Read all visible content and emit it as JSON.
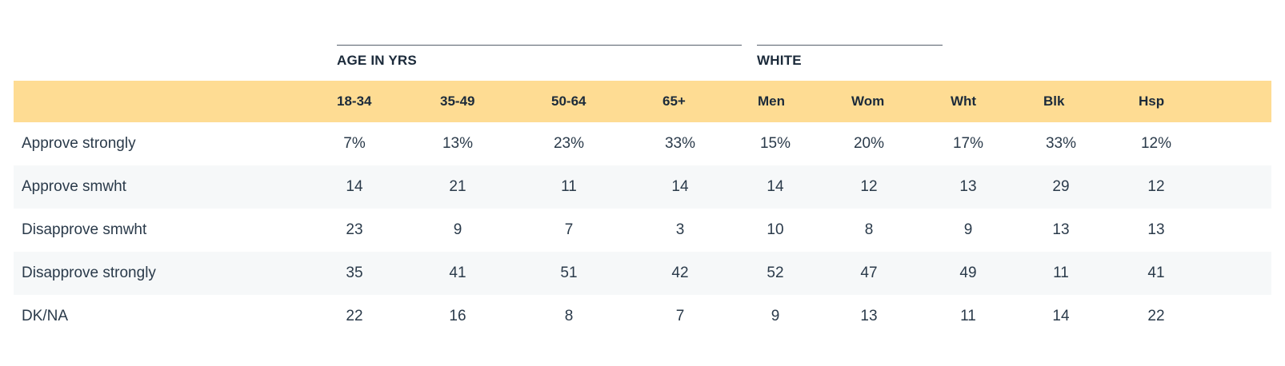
{
  "chart_data": {
    "type": "table",
    "column_groups": [
      {
        "label": "AGE IN YRS"
      },
      {
        "label": "WHITE"
      }
    ],
    "columns": [
      "18-34",
      "35-49",
      "50-64",
      "65+",
      "Men",
      "Wom",
      "Wht",
      "Blk",
      "Hsp"
    ],
    "rows": [
      {
        "label": "Approve strongly",
        "values": [
          "7%",
          "13%",
          "23%",
          "33%",
          "15%",
          "20%",
          "17%",
          "33%",
          "12%"
        ]
      },
      {
        "label": "Approve smwht",
        "values": [
          "14",
          "21",
          "11",
          "14",
          "14",
          "12",
          "13",
          "29",
          "12"
        ]
      },
      {
        "label": "Disapprove smwht",
        "values": [
          "23",
          "9",
          "7",
          "3",
          "10",
          "8",
          "9",
          "13",
          "13"
        ]
      },
      {
        "label": "Disapprove strongly",
        "values": [
          "35",
          "41",
          "51",
          "42",
          "52",
          "47",
          "49",
          "11",
          "41"
        ]
      },
      {
        "label": "DK/NA",
        "values": [
          "22",
          "16",
          "8",
          "7",
          "9",
          "13",
          "11",
          "14",
          "22"
        ]
      }
    ]
  },
  "colors": {
    "header_band": "#fedc93",
    "stripe": "#f6f8f9",
    "text": "#1b2a3a"
  }
}
